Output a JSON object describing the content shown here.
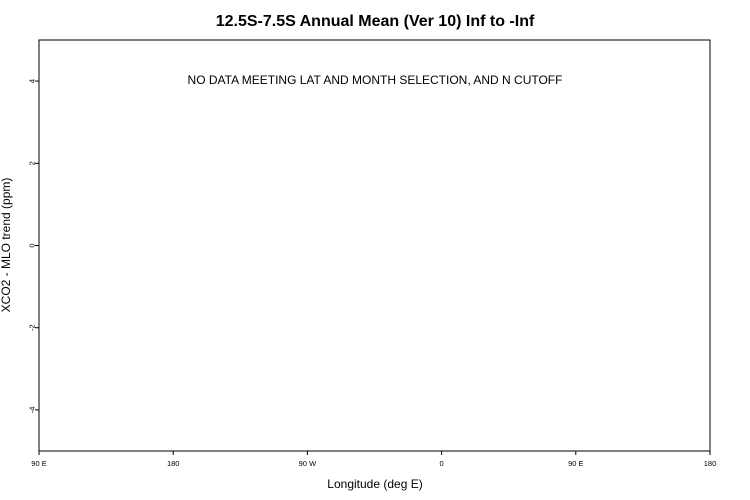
{
  "chart_data": {
    "type": "scatter",
    "title": "12.5S-7.5S Annual Mean (Ver 10)   Inf to -Inf",
    "xlabel": "Longitude (deg E)",
    "ylabel": "XCO2 - MLO trend (ppm)",
    "annotation": "NO DATA MEETING LAT AND MONTH SELECTION, AND N CUTOFF",
    "xlim": [
      90,
      450
    ],
    "ylim": [
      -5,
      5
    ],
    "x_ticks": [
      {
        "value": 90,
        "label": "90 E"
      },
      {
        "value": 180,
        "label": "180"
      },
      {
        "value": 270,
        "label": "90 W"
      },
      {
        "value": 360,
        "label": "0"
      },
      {
        "value": 450,
        "label": "90 E"
      },
      {
        "value": 540,
        "label": "180"
      }
    ],
    "y_ticks": [
      {
        "value": 4,
        "label": "4"
      },
      {
        "value": 2,
        "label": "2"
      },
      {
        "value": 0,
        "label": "0"
      },
      {
        "value": -2,
        "label": "-2"
      },
      {
        "value": -4,
        "label": "-4"
      }
    ],
    "series": [],
    "grid": false
  }
}
